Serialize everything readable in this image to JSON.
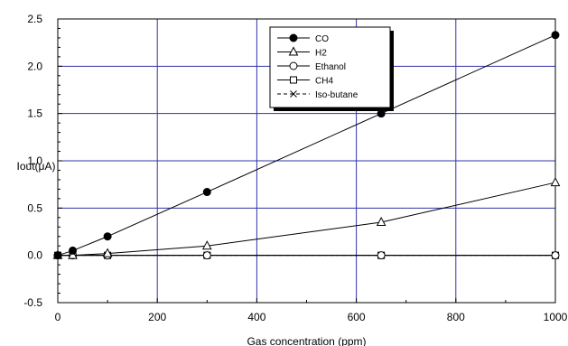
{
  "chart_data": {
    "type": "line",
    "xlabel": "Gas concentration (ppm)",
    "ylabel": "Iout(μA)",
    "xlim": [
      0,
      1000
    ],
    "ylim": [
      -0.5,
      2.5
    ],
    "x_ticks": [
      0,
      200,
      400,
      600,
      800,
      1000
    ],
    "y_ticks": [
      -0.5,
      0.0,
      0.5,
      1.0,
      1.5,
      2.0,
      2.5
    ],
    "x_tick_labels": [
      "0",
      "200",
      "400",
      "600",
      "800",
      "1000"
    ],
    "y_tick_labels": [
      "-0.5",
      "0.0",
      "0.5",
      "1.0",
      "1.5",
      "2.0",
      "2.5"
    ],
    "grid": true,
    "grid_color": "#3333aa",
    "legend_position": "top-center",
    "series": [
      {
        "name": "CO",
        "marker": "filled-circle",
        "line": "solid",
        "x": [
          0,
          30,
          100,
          300,
          650,
          1000
        ],
        "y": [
          0.0,
          0.05,
          0.2,
          0.67,
          1.5,
          2.33
        ]
      },
      {
        "name": "H2",
        "marker": "open-triangle",
        "line": "solid",
        "x": [
          0,
          30,
          100,
          300,
          650,
          1000
        ],
        "y": [
          0.0,
          0.0,
          0.02,
          0.1,
          0.35,
          0.77
        ]
      },
      {
        "name": "Ethanol",
        "marker": "open-circle",
        "line": "solid",
        "x": [
          0,
          30,
          100,
          300,
          650,
          1000
        ],
        "y": [
          0.0,
          0.0,
          0.0,
          0.0,
          0.0,
          0.0
        ]
      },
      {
        "name": "CH4",
        "marker": "open-square",
        "line": "solid",
        "x": [
          0,
          30,
          100,
          300,
          650,
          1000
        ],
        "y": [
          0.0,
          0.0,
          0.0,
          0.0,
          0.0,
          0.0
        ]
      },
      {
        "name": "Iso-butane",
        "marker": "cross",
        "line": "dashed",
        "x": [
          0,
          30,
          100,
          300,
          650,
          1000
        ],
        "y": [
          0.0,
          0.0,
          0.0,
          0.0,
          0.0,
          0.0
        ]
      }
    ]
  }
}
